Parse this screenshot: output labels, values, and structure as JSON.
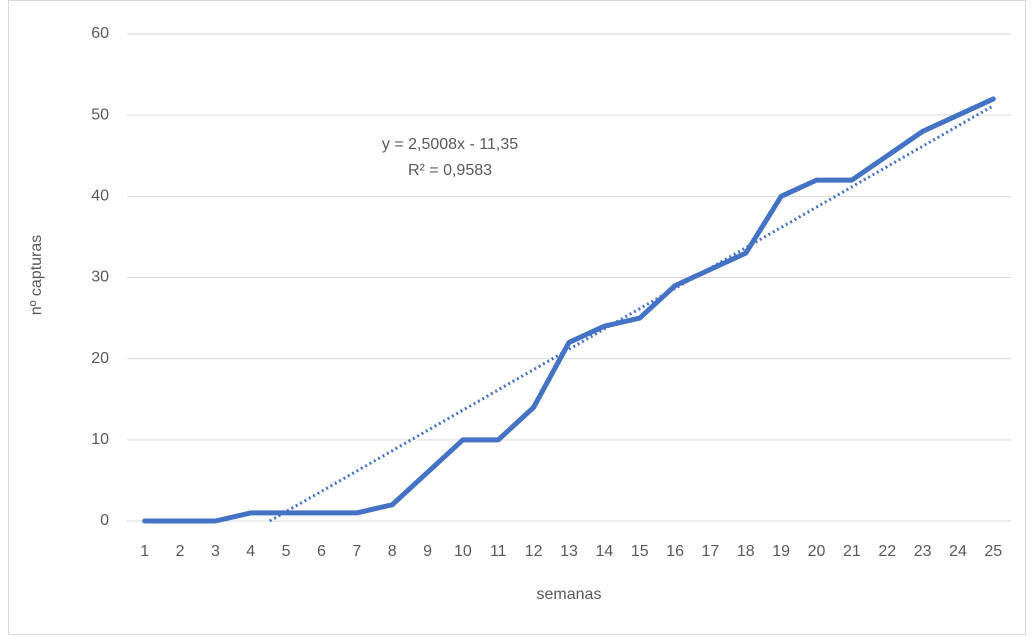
{
  "chart_data": {
    "type": "line",
    "x_label": "semanas",
    "y_label": "nº capturas",
    "categories": [
      "1",
      "2",
      "3",
      "4",
      "5",
      "6",
      "7",
      "8",
      "9",
      "10",
      "11",
      "12",
      "13",
      "14",
      "15",
      "16",
      "17",
      "18",
      "19",
      "20",
      "21",
      "22",
      "23",
      "24",
      "25"
    ],
    "series": [
      {
        "name": "nº capturas",
        "color": "#4472c4",
        "values": [
          0,
          0,
          0,
          1,
          1,
          1,
          1,
          2,
          6,
          10,
          10,
          14,
          22,
          24,
          25,
          29,
          31,
          33,
          40,
          42,
          42,
          45,
          48,
          50,
          52
        ]
      }
    ],
    "trendline": {
      "equation": "y = 2,5008x - 11,35",
      "r2": "R² = 0,9583",
      "slope": 2.5008,
      "intercept": -11.35,
      "color": "#4472c4"
    },
    "ylim": [
      0,
      60
    ],
    "yticks": [
      0,
      10,
      20,
      30,
      40,
      50,
      60
    ],
    "grid": true
  }
}
